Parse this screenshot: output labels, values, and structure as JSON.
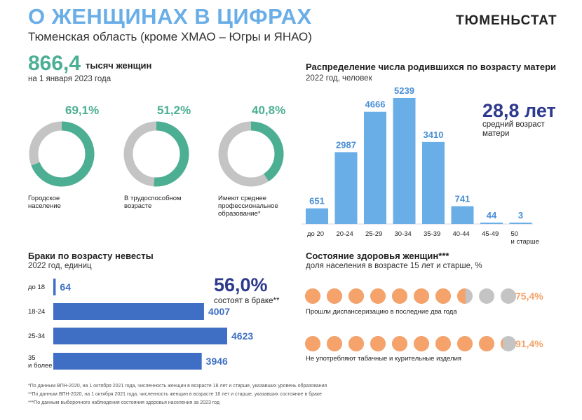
{
  "header": {
    "title": "О ЖЕНЩИНАХ В ЦИФРАХ",
    "subtitle": "Тюменская область (кроме ХМАО – Югры и ЯНАО)",
    "brand": "ТЮМЕНЬСТАТ"
  },
  "women": {
    "count": "866,4",
    "unit": "тысяч женщин",
    "date": "на 1 января 2023 года"
  },
  "colors": {
    "accent_green": "#4caf93",
    "donut_gray": "#c4c4c4",
    "bar_blue": "#6aaee8",
    "marriage_blue": "#3f6fc4",
    "kpi_navy": "#2e3a8c",
    "health_orange": "#f5a36a",
    "health_gray": "#c4c4c4"
  },
  "chart_data": [
    {
      "type": "pie",
      "name": "donuts",
      "items": [
        {
          "label": "Городское население",
          "pct_label": "69,1%",
          "value": 69.1
        },
        {
          "label": "В трудоспособном возрасте",
          "pct_label": "51,2%",
          "value": 51.2
        },
        {
          "label": "Имеют среднее профессиональное образование*",
          "pct_label": "40,8%",
          "value": 40.8
        }
      ]
    },
    {
      "type": "bar",
      "title": "Распределение числа родившихся по возрасту матери",
      "subtitle": "2022 год, человек",
      "categories": [
        "до 20",
        "20-24",
        "25-29",
        "30-34",
        "35-39",
        "40-44",
        "45-49",
        "50 и старше"
      ],
      "values": [
        651,
        2987,
        4666,
        5239,
        3410,
        741,
        44,
        3
      ],
      "value_labels": [
        "651",
        "2987",
        "4666",
        "5239",
        "3410",
        "741",
        "44",
        "3"
      ],
      "ylim": [
        0,
        5239
      ]
    },
    {
      "type": "bar",
      "orientation": "horizontal",
      "title": "Браки по возрасту невесты",
      "subtitle": "2022 год, единиц",
      "categories": [
        "до 18",
        "18-24",
        "25-34",
        "35 и более"
      ],
      "values": [
        64,
        4007,
        4623,
        3946
      ],
      "value_labels": [
        "64",
        "4007",
        "4623",
        "3946"
      ]
    },
    {
      "type": "bar",
      "name": "health",
      "title": "Состояние здоровья женщин***",
      "subtitle": "доля населения в возрасте 15 лет и старше, %",
      "items": [
        {
          "label": "Прошли диспансеризацию в последние два года",
          "pct_label": "75,4%",
          "value": 75.4
        },
        {
          "label": "Не употребляют табачные и курительные изделия",
          "pct_label": "91,4%",
          "value": 91.4
        }
      ]
    }
  ],
  "mother_age": {
    "value": "28,8 лет",
    "note": "средний возраст матери"
  },
  "married": {
    "value": "56,0%",
    "note": "состоят в браке**"
  },
  "footnotes": [
    "*По данным ВПН-2020, на 1 октября 2021 года, численность женщин в возрасте 18 лет и старше, указавших уровень образования",
    "**По данным ВПН-2020, на 1 октября 2021 года, численность женщин в возрасте 16 лет и старше, указавших состояние в браке",
    "***По данным выборочного наблюдения состояния здоровья населения за 2023 год"
  ]
}
